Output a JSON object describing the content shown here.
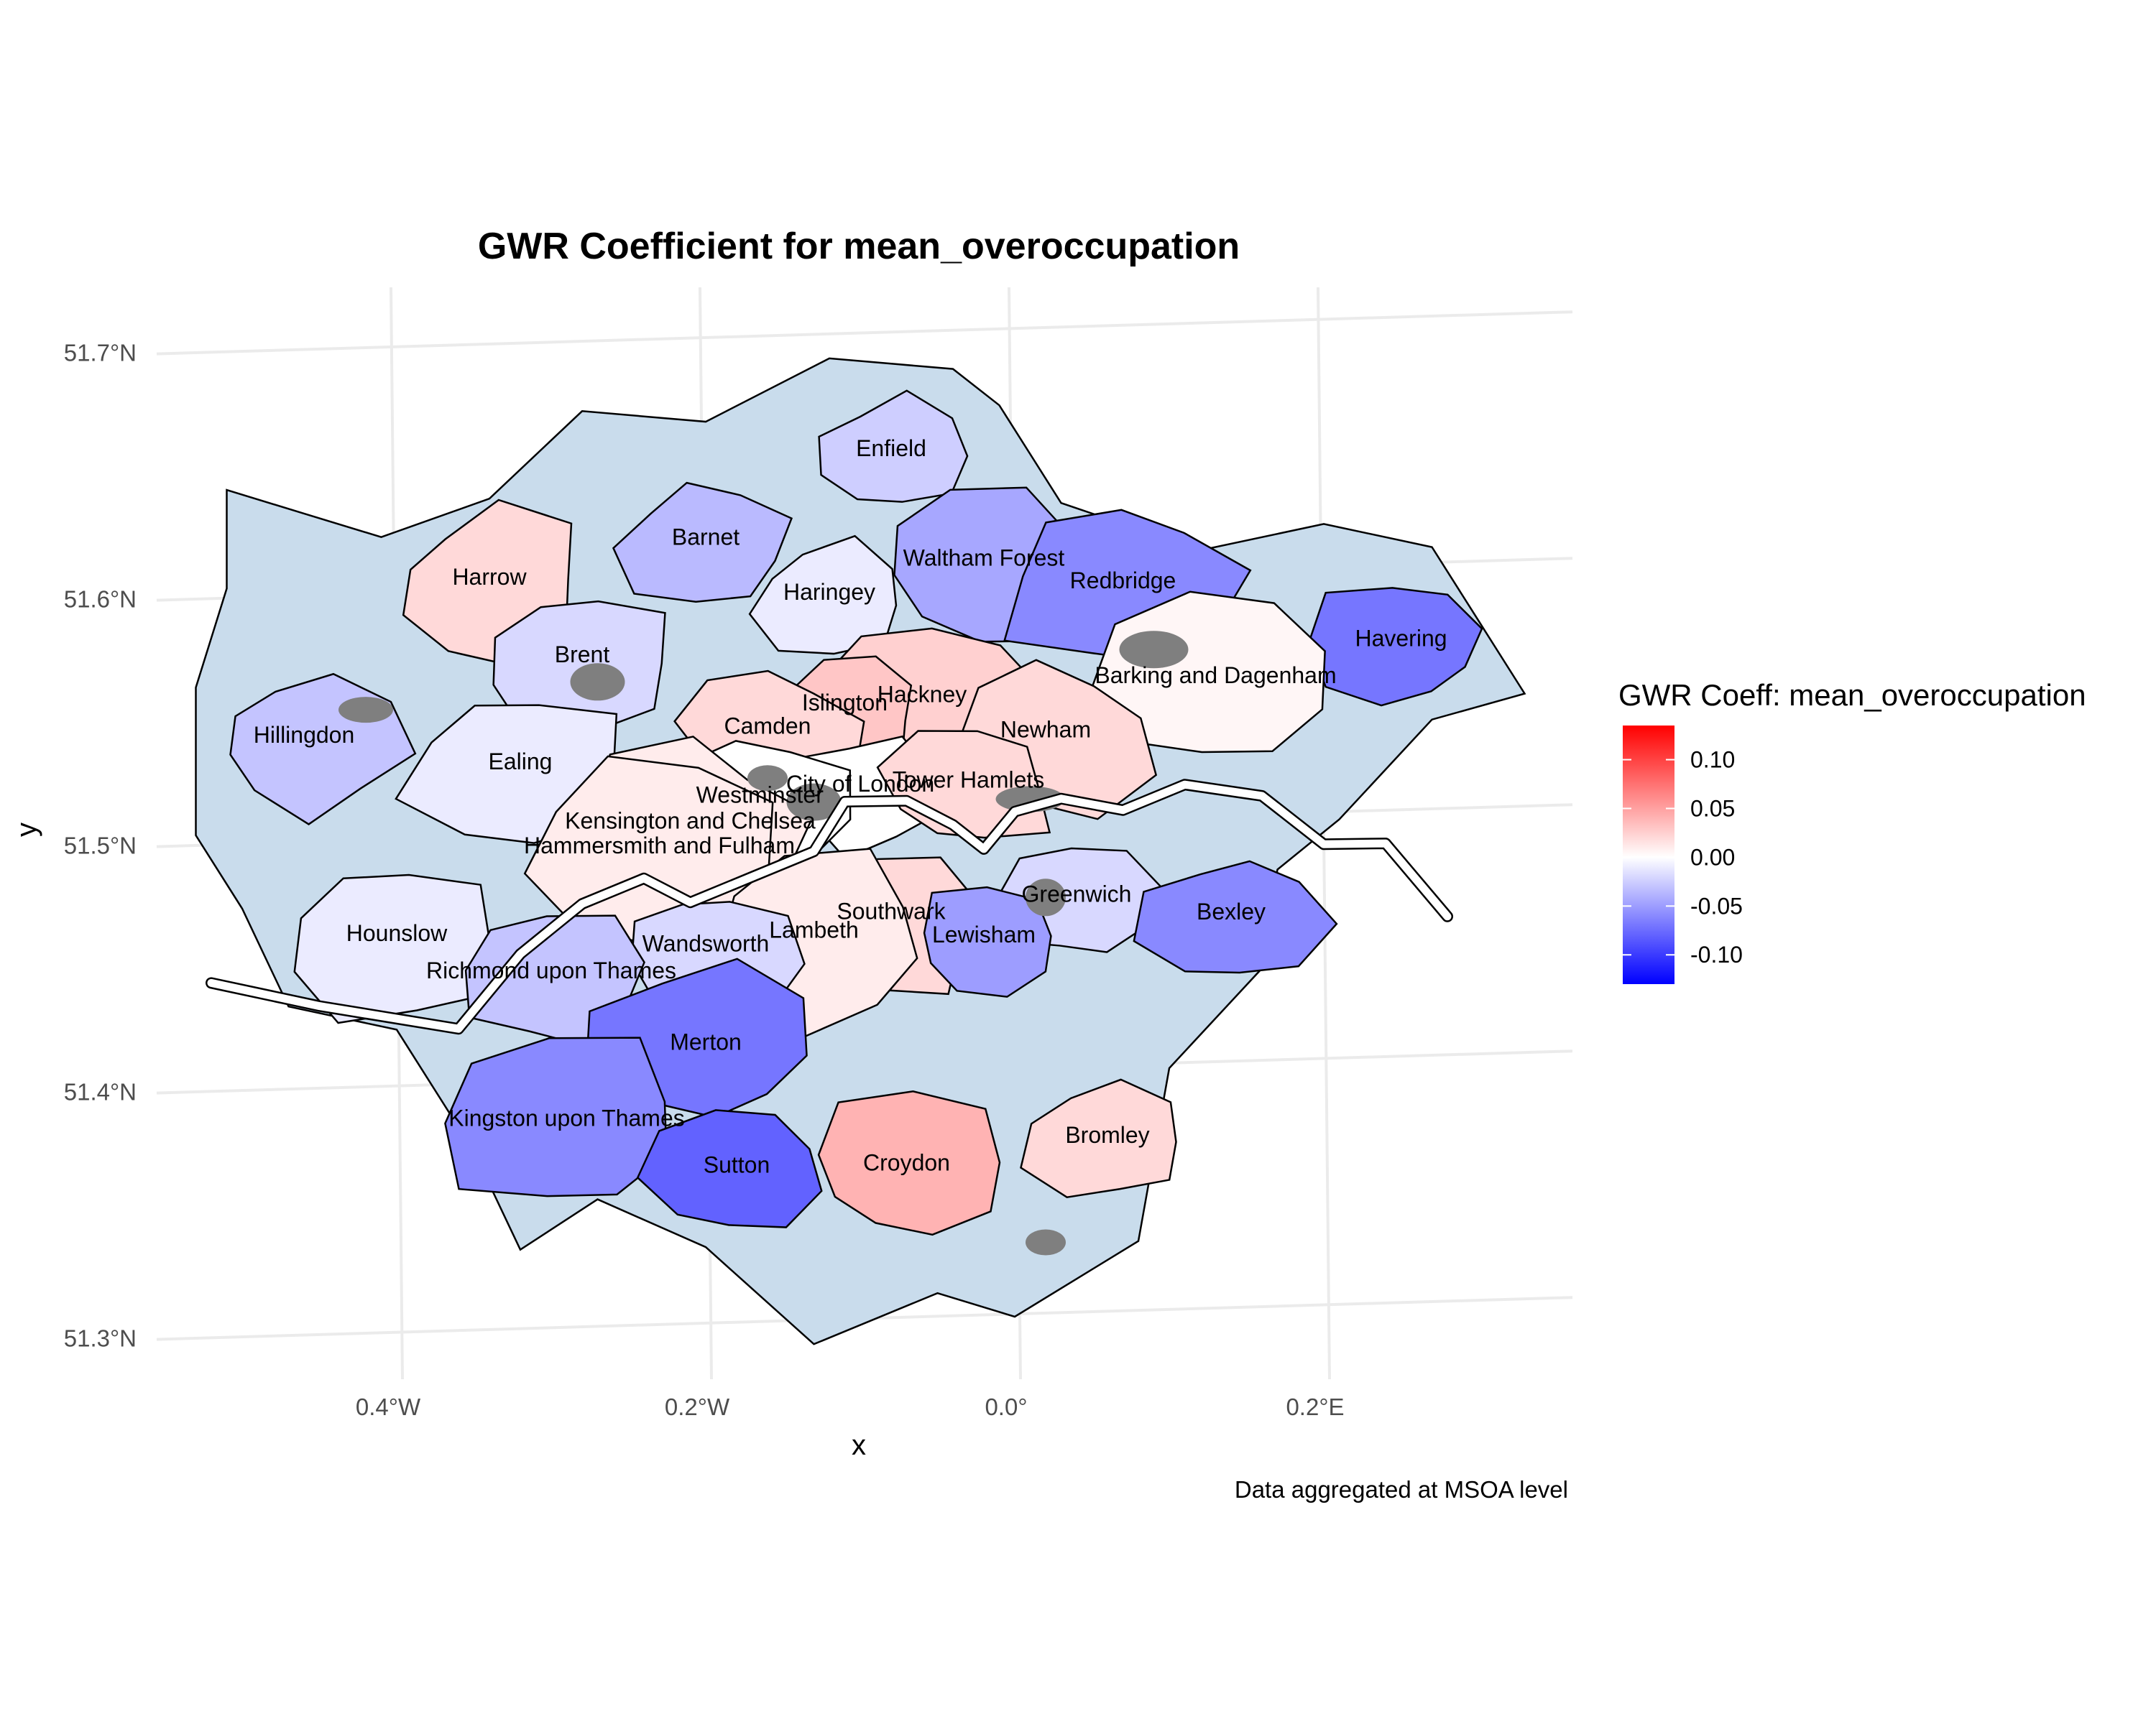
{
  "title": "GWR Coefficient for mean_overoccupation",
  "x_axis": {
    "label": "x",
    "ticks": [
      {
        "label": "0.4°W",
        "value": -0.4
      },
      {
        "label": "0.2°W",
        "value": -0.2
      },
      {
        "label": "0.0°",
        "value": 0.0
      },
      {
        "label": "0.2°E",
        "value": 0.2
      }
    ]
  },
  "y_axis": {
    "label": "y",
    "ticks": [
      {
        "label": "51.7°N",
        "value": 51.7
      },
      {
        "label": "51.6°N",
        "value": 51.6
      },
      {
        "label": "51.5°N",
        "value": 51.5
      },
      {
        "label": "51.4°N",
        "value": 51.4
      },
      {
        "label": "51.3°N",
        "value": 51.3
      }
    ]
  },
  "caption": "Data aggregated at MSOA level",
  "legend": {
    "title": "GWR Coeff: mean_overoccupation",
    "scale": "diverging",
    "low_color": "#0000ff",
    "mid_color": "#ffffff",
    "high_color": "#ff0000",
    "no_data_color": "#7f7f7f",
    "min": -0.13,
    "max": 0.135,
    "ticks": [
      {
        "label": "0.10",
        "value": 0.1
      },
      {
        "label": "0.05",
        "value": 0.05
      },
      {
        "label": "0.00",
        "value": 0.0
      },
      {
        "label": "-0.05",
        "value": -0.05
      },
      {
        "label": "-0.10",
        "value": -0.1
      }
    ]
  },
  "chart_data": {
    "type": "choropleth",
    "title": "GWR Coefficient for mean_overoccupation",
    "xlabel": "x",
    "ylabel": "y",
    "xlim": [
      -0.52,
      0.36
    ],
    "ylim": [
      51.28,
      51.72
    ],
    "grid": true,
    "legend_position": "right",
    "boroughs": [
      {
        "name": "Enfield",
        "coef": -0.025,
        "lon": -0.08,
        "lat": 51.65
      },
      {
        "name": "Barnet",
        "coef": -0.035,
        "lon": -0.2,
        "lat": 51.615
      },
      {
        "name": "Harrow",
        "coef": 0.02,
        "lon": -0.34,
        "lat": 51.6
      },
      {
        "name": "Waltham Forest",
        "coef": -0.045,
        "lon": -0.02,
        "lat": 51.605
      },
      {
        "name": "Redbridge",
        "coef": -0.06,
        "lon": 0.07,
        "lat": 51.595
      },
      {
        "name": "Haringey",
        "coef": -0.01,
        "lon": -0.12,
        "lat": 51.592
      },
      {
        "name": "Havering",
        "coef": -0.07,
        "lon": 0.25,
        "lat": 51.57
      },
      {
        "name": "Brent",
        "coef": -0.02,
        "lon": -0.28,
        "lat": 51.568
      },
      {
        "name": "Barking and Dagenham",
        "coef": 0.005,
        "lon": 0.13,
        "lat": 51.556
      },
      {
        "name": "Hackney",
        "coef": 0.025,
        "lon": -0.06,
        "lat": 51.55
      },
      {
        "name": "Islington",
        "coef": 0.03,
        "lon": -0.11,
        "lat": 51.547
      },
      {
        "name": "Camden",
        "coef": 0.02,
        "lon": -0.16,
        "lat": 51.538
      },
      {
        "name": "Hillingdon",
        "coef": -0.03,
        "lon": -0.46,
        "lat": 51.537
      },
      {
        "name": "Newham",
        "coef": 0.02,
        "lon": 0.02,
        "lat": 51.535
      },
      {
        "name": "Ealing",
        "coef": -0.01,
        "lon": -0.32,
        "lat": 51.525
      },
      {
        "name": "City of London",
        "coef": 0.0,
        "lon": -0.1,
        "lat": 51.514
      },
      {
        "name": "Tower Hamlets",
        "coef": 0.02,
        "lon": -0.03,
        "lat": 51.515
      },
      {
        "name": "Westminster",
        "coef": 0.0,
        "lon": -0.165,
        "lat": 51.51
      },
      {
        "name": "Kensington and Chelsea",
        "coef": 0.01,
        "lon": -0.21,
        "lat": 51.5
      },
      {
        "name": "Hammersmith and Fulham",
        "coef": 0.01,
        "lon": -0.23,
        "lat": 51.49
      },
      {
        "name": "Greenwich",
        "coef": -0.02,
        "lon": 0.04,
        "lat": 51.468
      },
      {
        "name": "Bexley",
        "coef": -0.06,
        "lon": 0.14,
        "lat": 51.46
      },
      {
        "name": "Southwark",
        "coef": 0.02,
        "lon": -0.08,
        "lat": 51.462
      },
      {
        "name": "Hounslow",
        "coef": -0.01,
        "lon": -0.4,
        "lat": 51.456
      },
      {
        "name": "Lambeth",
        "coef": 0.01,
        "lon": -0.13,
        "lat": 51.455
      },
      {
        "name": "Lewisham",
        "coef": -0.05,
        "lon": -0.02,
        "lat": 51.452
      },
      {
        "name": "Wandsworth",
        "coef": -0.02,
        "lon": -0.2,
        "lat": 51.45
      },
      {
        "name": "Richmond upon Thames",
        "coef": -0.03,
        "lon": -0.3,
        "lat": 51.44
      },
      {
        "name": "Merton",
        "coef": -0.07,
        "lon": -0.2,
        "lat": 51.41
      },
      {
        "name": "Kingston upon Thames",
        "coef": -0.06,
        "lon": -0.29,
        "lat": 51.38
      },
      {
        "name": "Bromley",
        "coef": 0.02,
        "lon": 0.06,
        "lat": 51.37
      },
      {
        "name": "Sutton",
        "coef": -0.08,
        "lon": -0.18,
        "lat": 51.36
      },
      {
        "name": "Croydon",
        "coef": 0.04,
        "lon": -0.07,
        "lat": 51.36
      }
    ]
  }
}
